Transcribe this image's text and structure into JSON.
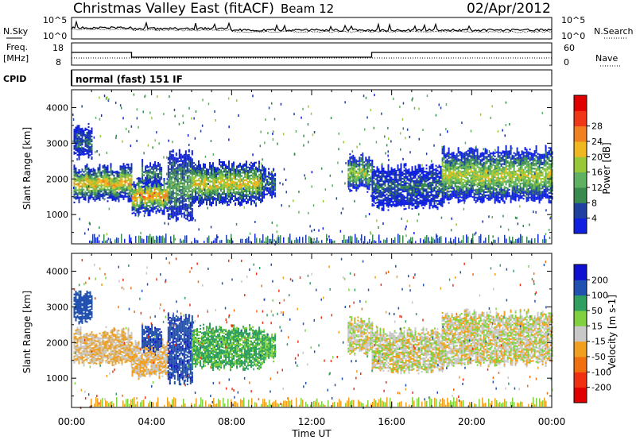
{
  "title": {
    "site": "Christmas Valley East (fitACF)",
    "beam": "Beam 12",
    "date": "02/Apr/2012"
  },
  "header_panels": {
    "nsky_label": "N.Sky",
    "nsearch_label": "N.Search",
    "freq_label_1": "Freq.",
    "freq_label_2": "[MHz]",
    "nave_label": "Nave",
    "cpid_label": "CPID",
    "cpid_value": "normal (fast) 151 IF",
    "noise_ticks": [
      "10^5",
      "10^0"
    ],
    "freq_ticks": [
      "18",
      "8"
    ],
    "nave_ticks": [
      "60",
      "0"
    ]
  },
  "axes": {
    "ylabel": "Slant Range [km]",
    "xlabel": "Time UT",
    "x_ticks": [
      "00:00",
      "04:00",
      "08:00",
      "12:00",
      "16:00",
      "20:00",
      "00:00"
    ],
    "y_ticks": [
      "1000",
      "2000",
      "3000",
      "4000"
    ]
  },
  "power_colorbar": {
    "label": "Power [dB]",
    "ticks": [
      "4",
      "8",
      "12",
      "16",
      "20",
      "24",
      "28"
    ],
    "colors": [
      "#1020e0",
      "#2040a0",
      "#3a8a50",
      "#5fb060",
      "#98c838",
      "#f0b820",
      "#f08020",
      "#f03818",
      "#e00000"
    ]
  },
  "velocity_colorbar": {
    "label": "Velocity [m s-1]",
    "ticks": [
      "200",
      "100",
      "50",
      "15",
      "-15",
      "-50",
      "-100",
      "-200"
    ],
    "colors": [
      "#1010d0",
      "#2050b0",
      "#30a060",
      "#80d040",
      "#c8c8c8",
      "#f0a020",
      "#f07010",
      "#f03010",
      "#e00000"
    ]
  },
  "chart_data": {
    "type": "heatmap",
    "x_range_hours": [
      0,
      24
    ],
    "y_range_km": [
      180,
      4500
    ],
    "frequency_mhz": [
      {
        "from": "00:00",
        "to": "03:00",
        "value": 14
      },
      {
        "from": "03:00",
        "to": "15:00",
        "value": 11
      },
      {
        "from": "15:00",
        "to": "24:00",
        "value": 14
      }
    ],
    "echo_regions": [
      {
        "start_h": 0.1,
        "end_h": 3.0,
        "range_low_km": 1400,
        "range_high_km": 2300,
        "power_db": 24,
        "velocity": -15
      },
      {
        "start_h": 0.1,
        "end_h": 1.0,
        "range_low_km": 2600,
        "range_high_km": 3400,
        "power_db": 8,
        "velocity": 150
      },
      {
        "start_h": 3.0,
        "end_h": 4.8,
        "range_low_km": 1050,
        "range_high_km": 1950,
        "power_db": 26,
        "velocity": -15
      },
      {
        "start_h": 3.5,
        "end_h": 4.5,
        "range_low_km": 1800,
        "range_high_km": 2400,
        "power_db": 12,
        "velocity": 180
      },
      {
        "start_h": 4.8,
        "end_h": 6.0,
        "range_low_km": 900,
        "range_high_km": 2700,
        "power_db": 14,
        "velocity": 180
      },
      {
        "start_h": 6.0,
        "end_h": 9.5,
        "range_low_km": 1300,
        "range_high_km": 2400,
        "power_db": 22,
        "velocity": 60
      },
      {
        "start_h": 9.5,
        "end_h": 10.2,
        "range_low_km": 1500,
        "range_high_km": 2200,
        "power_db": 10,
        "velocity": 50
      },
      {
        "start_h": 13.8,
        "end_h": 15.0,
        "range_low_km": 1700,
        "range_high_km": 2600,
        "power_db": 18,
        "velocity": 0
      },
      {
        "start_h": 15.0,
        "end_h": 18.5,
        "range_low_km": 1200,
        "range_high_km": 2300,
        "power_db": 8,
        "velocity": 0
      },
      {
        "start_h": 18.5,
        "end_h": 24.0,
        "range_low_km": 1400,
        "range_high_km": 2800,
        "power_db": 20,
        "velocity": 0
      }
    ]
  }
}
